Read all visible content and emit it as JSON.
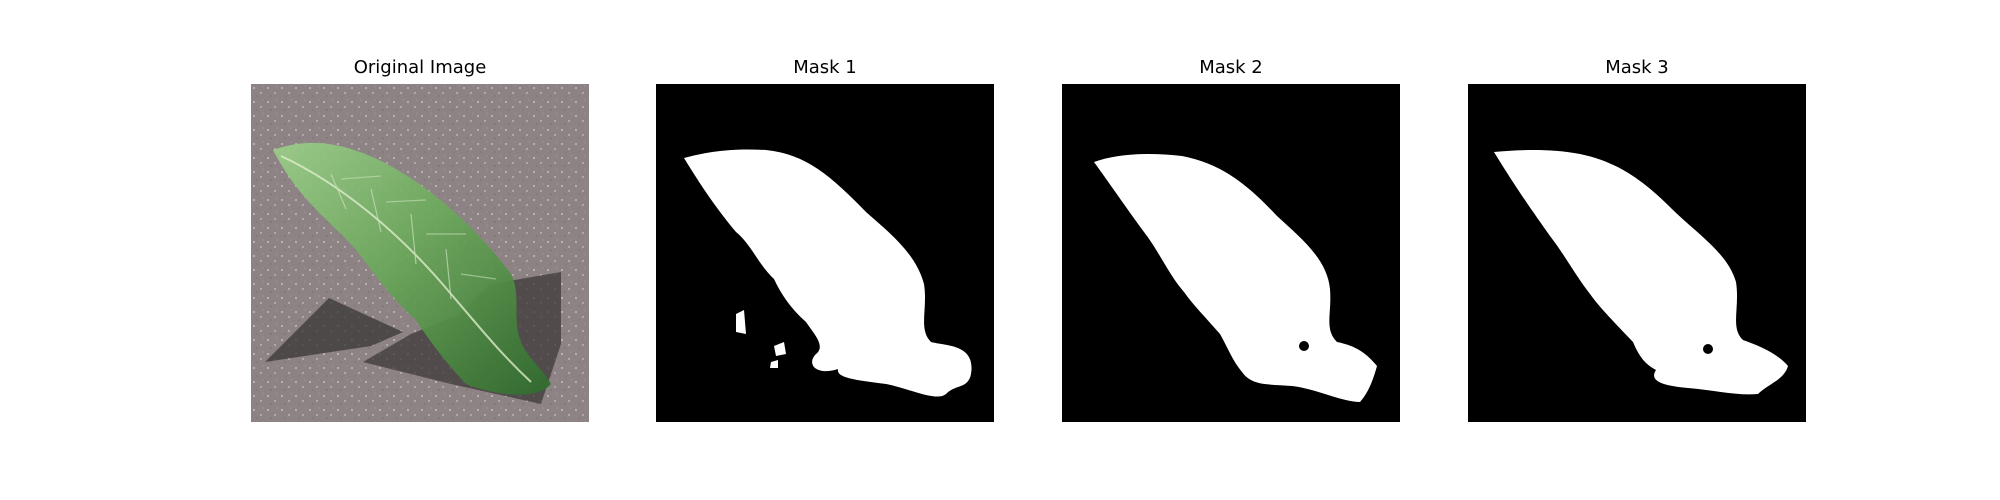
{
  "figure": {
    "panels": [
      {
        "title": "Original Image",
        "kind": "photo",
        "subject": "leaf"
      },
      {
        "title": "Mask 1",
        "kind": "mask",
        "background": "#000000",
        "foreground": "#ffffff"
      },
      {
        "title": "Mask 2",
        "kind": "mask",
        "background": "#000000",
        "foreground": "#ffffff"
      },
      {
        "title": "Mask 3",
        "kind": "mask",
        "background": "#000000",
        "foreground": "#ffffff"
      }
    ]
  },
  "colors": {
    "ground": "#8e8384",
    "leaf_light": "#7fb46e",
    "leaf_dark": "#2f6b2c",
    "shadow": "#3a3636"
  }
}
